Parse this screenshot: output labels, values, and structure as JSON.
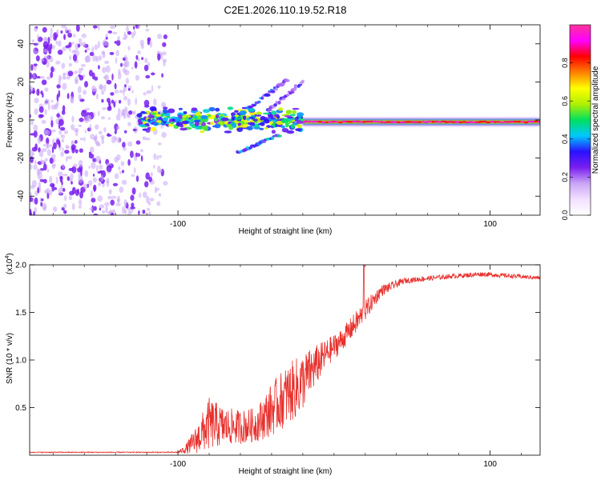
{
  "colors": {
    "line": "#e8302c",
    "speckle": "#7a1ff0",
    "speckle_light": "#c9a6f5",
    "axis": "#000000"
  },
  "title": "C2E1.2026.110.19.52.R18",
  "chart_data": [
    {
      "type": "heatmap",
      "title": "C2E1.2026.110.19.52.R18",
      "xlabel": "Height of straight line (km)",
      "ylabel": "Frequency (Hz)",
      "xlim": [
        -195,
        132
      ],
      "ylim": [
        -50,
        50
      ],
      "xticks": [
        -100,
        100
      ],
      "yticks": [
        -40,
        -20,
        0,
        20,
        40
      ],
      "colorbar": {
        "label": "Normalized spectral amplitude",
        "range": [
          0,
          1
        ],
        "ticks": [
          0.0,
          0.2,
          0.4,
          0.6,
          0.8
        ],
        "colormap": [
          "#ffffff",
          "#f3e0ff",
          "#c9a6f5",
          "#7a1ff0",
          "#2a10ff",
          "#00c8ff",
          "#00e060",
          "#b0f000",
          "#ffff00",
          "#ff8000",
          "#ff0000",
          "#ff00ff",
          "#ff3399"
        ]
      },
      "features": [
        {
          "name": "noise-region",
          "x_range": [
            -195,
            -108
          ],
          "y_range": [
            -50,
            50
          ],
          "amplitude": 0.12
        },
        {
          "name": "main-trace-turbulent",
          "x_range": [
            -125,
            -20
          ],
          "frequency_hz": 0,
          "amplitude": 0.45
        },
        {
          "name": "main-trace-coherent",
          "x_range": [
            -20,
            132
          ],
          "frequency_hz": -1,
          "amplitude": 0.9
        },
        {
          "name": "lower-branch",
          "x_range": [
            -62,
            -35
          ],
          "frequency_hz_range": [
            -17,
            -8
          ],
          "amplitude": 0.35
        },
        {
          "name": "upper-branch-a",
          "x_range": [
            -55,
            -30
          ],
          "frequency_hz_range": [
            6,
            21
          ],
          "amplitude": 0.3
        },
        {
          "name": "upper-branch-b",
          "x_range": [
            -42,
            -20
          ],
          "frequency_hz_range": [
            5,
            20
          ],
          "amplitude": 0.25
        }
      ]
    },
    {
      "type": "line",
      "xlabel": "Height of straight line (km)",
      "ylabel": "SNR (10 * v/v)",
      "y_multiplier": "(x10^4)",
      "y_multiplier_base": "(x10",
      "y_multiplier_exp": "4",
      "xlim": [
        -195,
        132
      ],
      "ylim": [
        0,
        2.0
      ],
      "xticks": [
        -100,
        100
      ],
      "yticks": [
        0.5,
        1.0,
        1.5,
        2.0
      ],
      "series": [
        {
          "name": "SNR",
          "profile": [
            {
              "x": -195,
              "y": 0.03,
              "noise": 0.005
            },
            {
              "x": -100,
              "y": 0.03,
              "noise": 0.005
            },
            {
              "x": -95,
              "y": 0.06,
              "noise": 0.05
            },
            {
              "x": -88,
              "y": 0.15,
              "noise": 0.15
            },
            {
              "x": -80,
              "y": 0.3,
              "noise": 0.28
            },
            {
              "x": -70,
              "y": 0.28,
              "noise": 0.2
            },
            {
              "x": -60,
              "y": 0.28,
              "noise": 0.18
            },
            {
              "x": -50,
              "y": 0.3,
              "noise": 0.18
            },
            {
              "x": -40,
              "y": 0.45,
              "noise": 0.28
            },
            {
              "x": -30,
              "y": 0.6,
              "noise": 0.32
            },
            {
              "x": -22,
              "y": 0.7,
              "noise": 0.32
            },
            {
              "x": -15,
              "y": 0.85,
              "noise": 0.25
            },
            {
              "x": -5,
              "y": 1.05,
              "noise": 0.15
            },
            {
              "x": 5,
              "y": 1.2,
              "noise": 0.12
            },
            {
              "x": 15,
              "y": 1.4,
              "noise": 0.12
            },
            {
              "x": 22,
              "y": 1.55,
              "noise": 0.1
            },
            {
              "x": 30,
              "y": 1.72,
              "noise": 0.06
            },
            {
              "x": 45,
              "y": 1.83,
              "noise": 0.03
            },
            {
              "x": 70,
              "y": 1.87,
              "noise": 0.025
            },
            {
              "x": 95,
              "y": 1.9,
              "noise": 0.025
            },
            {
              "x": 132,
              "y": 1.86,
              "noise": 0.02
            }
          ],
          "peak": {
            "x": 19,
            "y": 2.0
          }
        }
      ]
    }
  ]
}
